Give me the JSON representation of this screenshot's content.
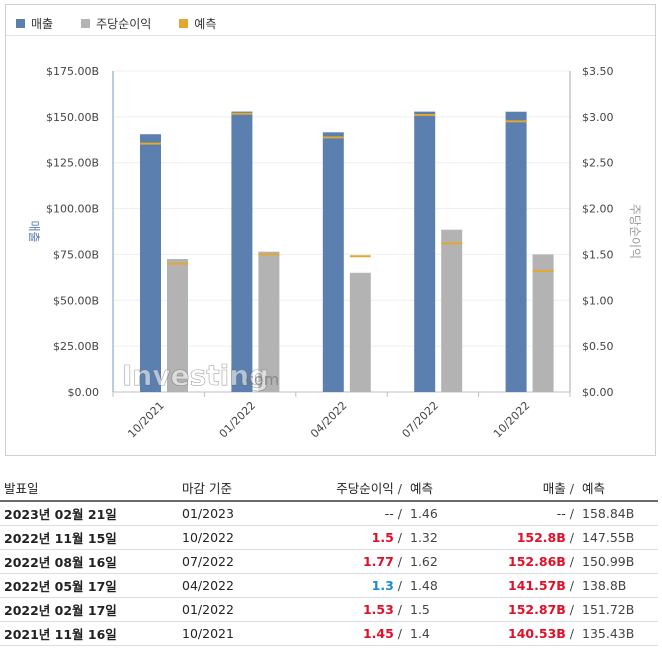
{
  "legend": [
    {
      "label": "매출",
      "color": "#5b7faf"
    },
    {
      "label": "주당순이익",
      "color": "#b3b3b3"
    },
    {
      "label": "예측",
      "color": "#e3a82e"
    }
  ],
  "chart_data": {
    "type": "bar",
    "categories": [
      "10/2021",
      "01/2022",
      "04/2022",
      "07/2022",
      "10/2022"
    ],
    "series": [
      {
        "name": "매출",
        "axis": "left",
        "color": "#5b7faf",
        "values": [
          140.53,
          152.87,
          141.57,
          152.86,
          152.8
        ],
        "forecast": [
          135.43,
          151.72,
          138.8,
          150.99,
          147.55
        ]
      },
      {
        "name": "주당순이익",
        "axis": "right",
        "color": "#b3b3b3",
        "values": [
          1.45,
          1.53,
          1.3,
          1.77,
          1.5
        ],
        "forecast": [
          1.4,
          1.5,
          1.48,
          1.62,
          1.32
        ]
      }
    ],
    "left_axis": {
      "label": "매출",
      "ticks": [
        "$0.00",
        "$25.00B",
        "$50.00B",
        "$75.00B",
        "$100.00B",
        "$125.00B",
        "$150.00B",
        "$175.00B"
      ],
      "range": [
        0,
        175
      ]
    },
    "right_axis": {
      "label": "주당순이익",
      "ticks": [
        "$0.00",
        "$0.50",
        "$1.00",
        "$1.50",
        "$2.00",
        "$2.50",
        "$3.00",
        "$3.50"
      ],
      "range": [
        0,
        3.5
      ]
    },
    "forecast_color": "#e3a82e"
  },
  "watermark": {
    "brand": "Investing",
    "suffix": ".com"
  },
  "table": {
    "headers": {
      "date": "발표일",
      "period": "마감 기준",
      "eps": "주당순이익",
      "slash": "/",
      "eps_forecast": "예측",
      "revenue": "매출",
      "revenue_forecast": "예측"
    },
    "rows": [
      {
        "date": "2023년 02월 21일",
        "period": "01/2023",
        "eps": "--",
        "eps_state": "neutral",
        "eps_forecast": "1.46",
        "revenue": "--",
        "rev_state": "neutral",
        "revenue_forecast": "158.84B"
      },
      {
        "date": "2022년 11월 15일",
        "period": "10/2022",
        "eps": "1.5",
        "eps_state": "beat",
        "eps_forecast": "1.32",
        "revenue": "152.8B",
        "rev_state": "beat",
        "revenue_forecast": "147.55B"
      },
      {
        "date": "2022년 08월 16일",
        "period": "07/2022",
        "eps": "1.77",
        "eps_state": "beat",
        "eps_forecast": "1.62",
        "revenue": "152.86B",
        "rev_state": "beat",
        "revenue_forecast": "150.99B"
      },
      {
        "date": "2022년 05월 17일",
        "period": "04/2022",
        "eps": "1.3",
        "eps_state": "miss",
        "eps_forecast": "1.48",
        "revenue": "141.57B",
        "rev_state": "beat",
        "revenue_forecast": "138.8B"
      },
      {
        "date": "2022년 02월 17일",
        "period": "01/2022",
        "eps": "1.53",
        "eps_state": "beat",
        "eps_forecast": "1.5",
        "revenue": "152.87B",
        "rev_state": "beat",
        "revenue_forecast": "151.72B"
      },
      {
        "date": "2021년 11월 16일",
        "period": "10/2021",
        "eps": "1.45",
        "eps_state": "beat",
        "eps_forecast": "1.4",
        "revenue": "140.53B",
        "rev_state": "beat",
        "revenue_forecast": "135.43B"
      }
    ]
  }
}
